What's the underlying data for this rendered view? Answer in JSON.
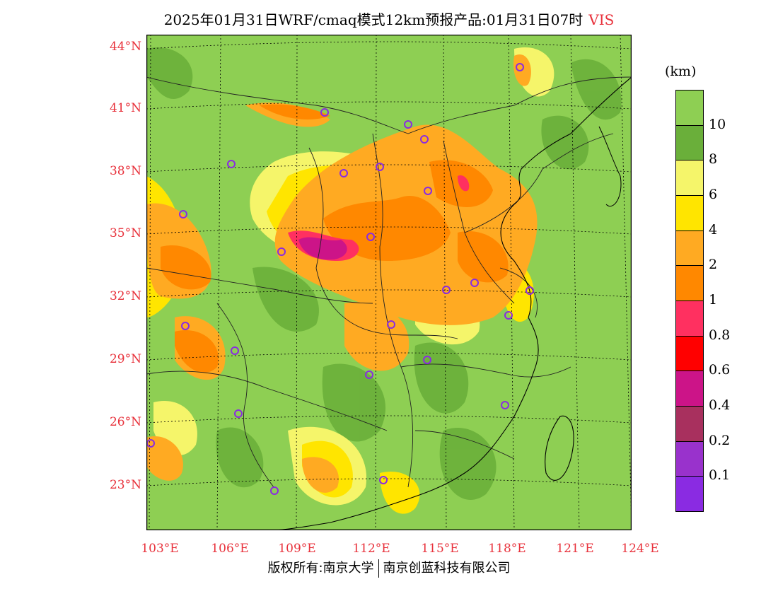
{
  "title": {
    "main": "2025年01月31日WRF/cmaq模式12km预报产品:01月31日07时",
    "variable": "VIS"
  },
  "map": {
    "latitude_labels": [
      "44°N",
      "41°N",
      "38°N",
      "35°N",
      "32°N",
      "29°N",
      "26°N",
      "23°N"
    ],
    "longitude_labels": [
      "103°E",
      "106°E",
      "109°E",
      "112°E",
      "115°E",
      "118°E",
      "121°E",
      "124°E"
    ],
    "colors": {
      "land_base": "#8ecf53",
      "ocean": "#8ecf53",
      "label_red": "#e8323c",
      "site_marker": "#8a2be2"
    }
  },
  "legend": {
    "unit": "(km)",
    "labels": [
      "10",
      "8",
      "6",
      "4",
      "2",
      "1",
      "0.8",
      "0.6",
      "0.4",
      "0.2",
      "0.1"
    ],
    "colors": [
      "#8ecf53",
      "#6aaf3a",
      "#f5f56a",
      "#ffe500",
      "#ffaa22",
      "#ff8800",
      "#ff3060",
      "#ff0000",
      "#cc1488",
      "#a8305e",
      "#9932cc",
      "#8a2be2"
    ]
  },
  "footer": {
    "left": "版权所有:南京大学",
    "right": "南京创蓝科技有限公司"
  }
}
